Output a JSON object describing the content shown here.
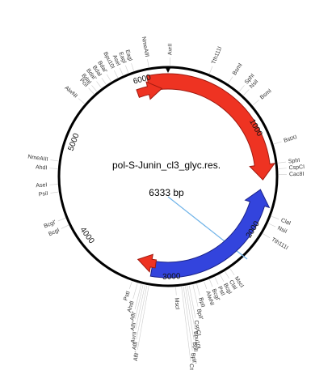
{
  "title": "pol-S-Junin_cl3_glyc.res.",
  "length": "6333 bp",
  "positions": [
    6000,
    1000,
    2000,
    3000,
    4000,
    5000
  ],
  "enzymes": [
    "BdaI",
    "BdaI'",
    "BdaI",
    "BdaI'",
    "Bpu10I",
    "AseI",
    "EagI",
    "EagI",
    "NmeAIII",
    "AvrII",
    "Tth111I",
    "BsmI",
    "SphI",
    "NsiI",
    "BsmI",
    "BstXI",
    "SphI",
    "CspCI",
    "Cac8I",
    "ClaI",
    "NsiI",
    "Tth111I",
    "MscI",
    "ClaI",
    "BcgI",
    "PstI",
    "BcgI'",
    "AlwNI",
    "BplI",
    "BplI'",
    "CspCI",
    "Bpu10I",
    "BplI",
    "BplI'",
    "CspCI'",
    "MscI",
    "PstI",
    "AhdI",
    "AflI'",
    "AflI'",
    "AvrII",
    "AflI",
    "AflI'",
    "BcgI",
    "BcgI'",
    "PsiI",
    "AseI",
    "AhdI",
    "NmeAIII",
    "AlwNI",
    "PciI"
  ]
}
